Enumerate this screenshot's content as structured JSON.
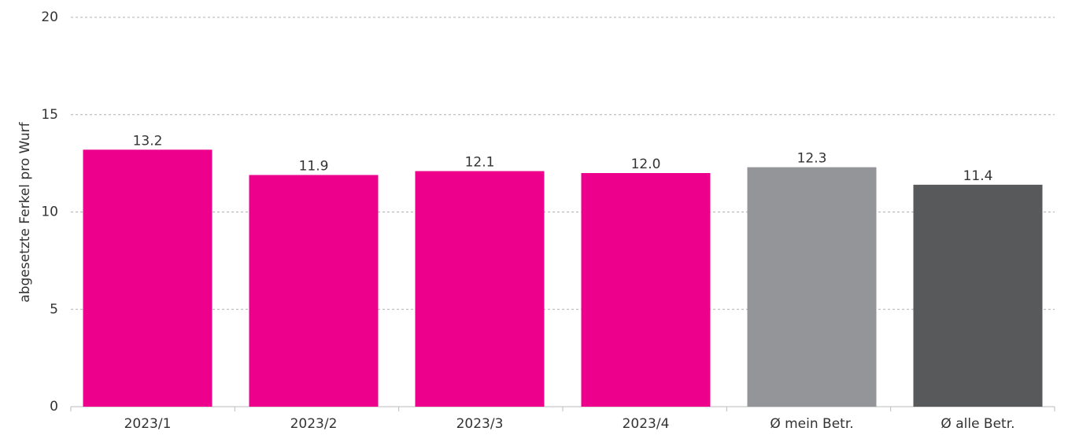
{
  "chart_data": {
    "type": "bar",
    "ylabel": "abgesetzte Ferkel pro Wurf",
    "categories": [
      "2023/1",
      "2023/2",
      "2023/3",
      "2023/4",
      "Ø mein Betr.",
      "Ø alle Betr."
    ],
    "values": [
      13.2,
      11.9,
      12.1,
      12.0,
      12.3,
      11.4
    ],
    "value_labels": [
      "13.2",
      "11.9",
      "12.1",
      "12.0",
      "12.3",
      "11.4"
    ],
    "colors": [
      "#ec008c",
      "#ec008c",
      "#ec008c",
      "#ec008c",
      "#939598",
      "#58595b"
    ],
    "ylim": [
      0,
      20
    ],
    "yticks": [
      0,
      5,
      10,
      15,
      20
    ],
    "grid": true
  }
}
